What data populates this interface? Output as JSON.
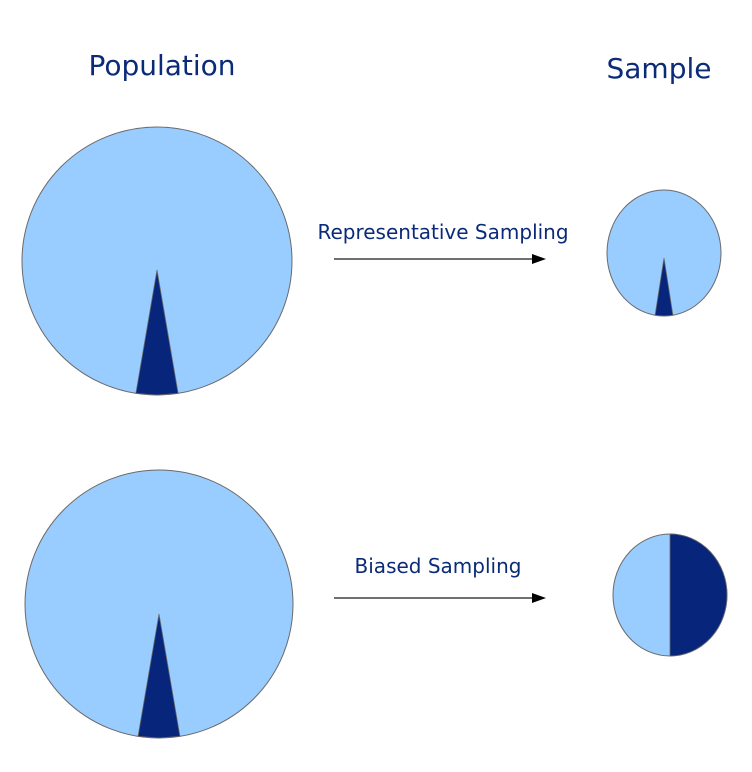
{
  "headings": {
    "population": "Population",
    "sample": "Sample"
  },
  "rows": [
    {
      "method": "Representative Sampling",
      "population_dark_fraction": 0.05,
      "sample_dark_fraction": 0.05
    },
    {
      "method": "Biased Sampling",
      "population_dark_fraction": 0.05,
      "sample_dark_fraction": 0.5
    }
  ],
  "colors": {
    "light": "#99ccff",
    "dark": "#07257a",
    "text": "#0b2a78"
  }
}
